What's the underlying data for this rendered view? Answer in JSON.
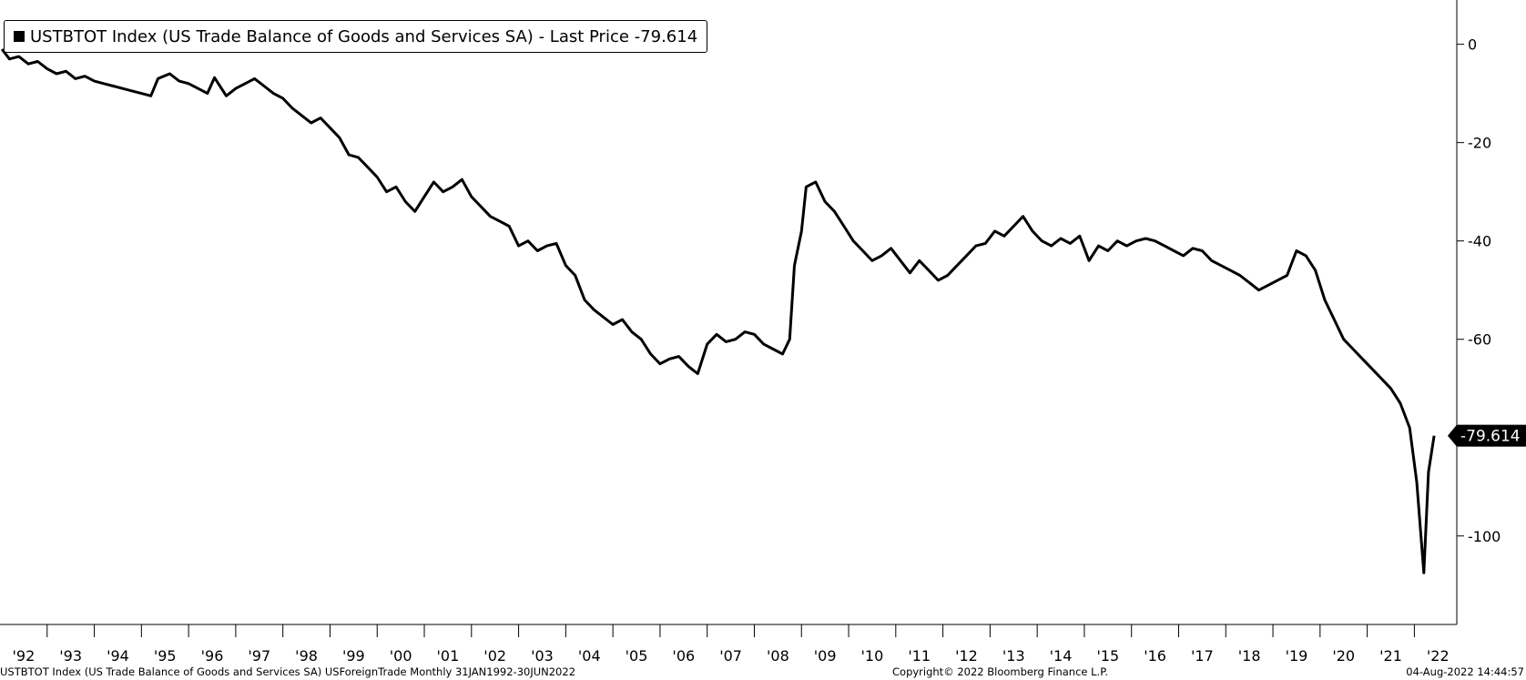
{
  "legend": {
    "series_label": "USTBTOT Index (US Trade Balance of Goods and Services SA)",
    "separator": " - ",
    "last_price_label": "Last Price",
    "last_price_value": "-79.614"
  },
  "footer": {
    "source": "USTBTOT Index (US Trade Balance of Goods and Services SA) USForeignTrade  Monthly 31JAN1992-30JUN2022",
    "copyright": "Copyright© 2022 Bloomberg Finance L.P.",
    "timestamp": "04-Aug-2022 14:44:57"
  },
  "chart_data": {
    "type": "line",
    "title": "",
    "xlabel": "",
    "ylabel": "",
    "xlim": [
      1992.0,
      2022.9
    ],
    "ylim": [
      -118,
      9
    ],
    "yticks": [
      0,
      -20,
      -40,
      -60,
      -100
    ],
    "yticklabels": [
      "0",
      "-20",
      "-40",
      "-60",
      "-100"
    ],
    "xticklabels": [
      "'92",
      "'93",
      "'94",
      "'95",
      "'96",
      "'97",
      "'98",
      "'99",
      "'00",
      "'01",
      "'02",
      "'03",
      "'04",
      "'05",
      "'06",
      "'07",
      "'08",
      "'09",
      "'10",
      "'11",
      "'12",
      "'13",
      "'14",
      "'15",
      "'16",
      "'17",
      "'18",
      "'19",
      "'20",
      "'21",
      "'22"
    ],
    "last_value_label": "-79.614",
    "grid": false,
    "legend_position": "top-left",
    "line_color": "#000000",
    "series": [
      {
        "name": "USTBTOT Index (US Trade Balance of Goods and Services SA)",
        "points": [
          [
            1992.04,
            -1.0
          ],
          [
            1992.2,
            -3.0
          ],
          [
            1992.4,
            -2.5
          ],
          [
            1992.6,
            -4.0
          ],
          [
            1992.8,
            -3.5
          ],
          [
            1993.0,
            -5.0
          ],
          [
            1993.2,
            -6.0
          ],
          [
            1993.4,
            -5.5
          ],
          [
            1993.6,
            -7.0
          ],
          [
            1993.8,
            -6.5
          ],
          [
            1994.0,
            -7.5
          ],
          [
            1994.2,
            -8.0
          ],
          [
            1994.4,
            -8.5
          ],
          [
            1994.6,
            -9.0
          ],
          [
            1994.8,
            -9.5
          ],
          [
            1995.0,
            -10.0
          ],
          [
            1995.2,
            -10.5
          ],
          [
            1995.35,
            -7.0
          ],
          [
            1995.6,
            -6.0
          ],
          [
            1995.8,
            -7.5
          ],
          [
            1996.0,
            -8.0
          ],
          [
            1996.2,
            -9.0
          ],
          [
            1996.4,
            -10.0
          ],
          [
            1996.55,
            -6.8
          ],
          [
            1996.8,
            -10.5
          ],
          [
            1997.0,
            -9.0
          ],
          [
            1997.2,
            -8.0
          ],
          [
            1997.4,
            -7.0
          ],
          [
            1997.6,
            -8.5
          ],
          [
            1997.8,
            -10.0
          ],
          [
            1998.0,
            -11.0
          ],
          [
            1998.2,
            -13.0
          ],
          [
            1998.4,
            -14.5
          ],
          [
            1998.6,
            -16.0
          ],
          [
            1998.8,
            -15.0
          ],
          [
            1999.0,
            -17.0
          ],
          [
            1999.2,
            -19.0
          ],
          [
            1999.4,
            -22.5
          ],
          [
            1999.6,
            -23.0
          ],
          [
            1999.8,
            -25.0
          ],
          [
            2000.0,
            -27.0
          ],
          [
            2000.2,
            -30.0
          ],
          [
            2000.4,
            -29.0
          ],
          [
            2000.6,
            -32.0
          ],
          [
            2000.8,
            -34.0
          ],
          [
            2001.0,
            -31.0
          ],
          [
            2001.2,
            -28.0
          ],
          [
            2001.4,
            -30.0
          ],
          [
            2001.6,
            -29.0
          ],
          [
            2001.8,
            -27.5
          ],
          [
            2002.0,
            -31.0
          ],
          [
            2002.2,
            -33.0
          ],
          [
            2002.4,
            -35.0
          ],
          [
            2002.6,
            -36.0
          ],
          [
            2002.8,
            -37.0
          ],
          [
            2003.0,
            -41.0
          ],
          [
            2003.2,
            -40.0
          ],
          [
            2003.4,
            -42.0
          ],
          [
            2003.6,
            -41.0
          ],
          [
            2003.8,
            -40.5
          ],
          [
            2004.0,
            -45.0
          ],
          [
            2004.2,
            -47.0
          ],
          [
            2004.4,
            -52.0
          ],
          [
            2004.6,
            -54.0
          ],
          [
            2004.8,
            -55.5
          ],
          [
            2005.0,
            -57.0
          ],
          [
            2005.2,
            -56.0
          ],
          [
            2005.4,
            -58.5
          ],
          [
            2005.6,
            -60.0
          ],
          [
            2005.8,
            -63.0
          ],
          [
            2006.0,
            -65.0
          ],
          [
            2006.2,
            -64.0
          ],
          [
            2006.4,
            -63.5
          ],
          [
            2006.6,
            -65.5
          ],
          [
            2006.8,
            -67.0
          ],
          [
            2007.0,
            -61.0
          ],
          [
            2007.2,
            -59.0
          ],
          [
            2007.4,
            -60.5
          ],
          [
            2007.6,
            -60.0
          ],
          [
            2007.8,
            -58.5
          ],
          [
            2008.0,
            -59.0
          ],
          [
            2008.2,
            -61.0
          ],
          [
            2008.4,
            -62.0
          ],
          [
            2008.6,
            -63.0
          ],
          [
            2008.75,
            -60.0
          ],
          [
            2008.85,
            -45.0
          ],
          [
            2009.0,
            -38.0
          ],
          [
            2009.1,
            -29.0
          ],
          [
            2009.3,
            -28.0
          ],
          [
            2009.5,
            -32.0
          ],
          [
            2009.7,
            -34.0
          ],
          [
            2009.9,
            -37.0
          ],
          [
            2010.1,
            -40.0
          ],
          [
            2010.3,
            -42.0
          ],
          [
            2010.5,
            -44.0
          ],
          [
            2010.7,
            -43.0
          ],
          [
            2010.9,
            -41.5
          ],
          [
            2011.1,
            -44.0
          ],
          [
            2011.3,
            -46.5
          ],
          [
            2011.5,
            -44.0
          ],
          [
            2011.7,
            -46.0
          ],
          [
            2011.9,
            -48.0
          ],
          [
            2012.1,
            -47.0
          ],
          [
            2012.3,
            -45.0
          ],
          [
            2012.5,
            -43.0
          ],
          [
            2012.7,
            -41.0
          ],
          [
            2012.9,
            -40.5
          ],
          [
            2013.1,
            -38.0
          ],
          [
            2013.3,
            -39.0
          ],
          [
            2013.5,
            -37.0
          ],
          [
            2013.7,
            -35.0
          ],
          [
            2013.9,
            -38.0
          ],
          [
            2014.1,
            -40.0
          ],
          [
            2014.3,
            -41.0
          ],
          [
            2014.5,
            -39.5
          ],
          [
            2014.7,
            -40.5
          ],
          [
            2014.9,
            -39.0
          ],
          [
            2015.1,
            -44.0
          ],
          [
            2015.3,
            -41.0
          ],
          [
            2015.5,
            -42.0
          ],
          [
            2015.7,
            -40.0
          ],
          [
            2015.9,
            -41.0
          ],
          [
            2016.1,
            -40.0
          ],
          [
            2016.3,
            -39.5
          ],
          [
            2016.5,
            -40.0
          ],
          [
            2016.7,
            -41.0
          ],
          [
            2016.9,
            -42.0
          ],
          [
            2017.1,
            -43.0
          ],
          [
            2017.3,
            -41.5
          ],
          [
            2017.5,
            -42.0
          ],
          [
            2017.7,
            -44.0
          ],
          [
            2017.9,
            -45.0
          ],
          [
            2018.1,
            -46.0
          ],
          [
            2018.3,
            -47.0
          ],
          [
            2018.5,
            -48.5
          ],
          [
            2018.7,
            -50.0
          ],
          [
            2018.9,
            -49.0
          ],
          [
            2019.1,
            -48.0
          ],
          [
            2019.3,
            -47.0
          ],
          [
            2019.5,
            -42.0
          ],
          [
            2019.7,
            -43.0
          ],
          [
            2019.9,
            -46.0
          ],
          [
            2020.1,
            -52.0
          ],
          [
            2020.3,
            -56.0
          ],
          [
            2020.5,
            -60.0
          ],
          [
            2020.7,
            -62.0
          ],
          [
            2020.9,
            -64.0
          ],
          [
            2021.1,
            -66.0
          ],
          [
            2021.3,
            -68.0
          ],
          [
            2021.5,
            -70.0
          ],
          [
            2021.7,
            -73.0
          ],
          [
            2021.9,
            -78.0
          ],
          [
            2022.05,
            -89.0
          ],
          [
            2022.2,
            -107.5
          ],
          [
            2022.3,
            -87.0
          ],
          [
            2022.42,
            -79.614
          ]
        ]
      }
    ]
  }
}
